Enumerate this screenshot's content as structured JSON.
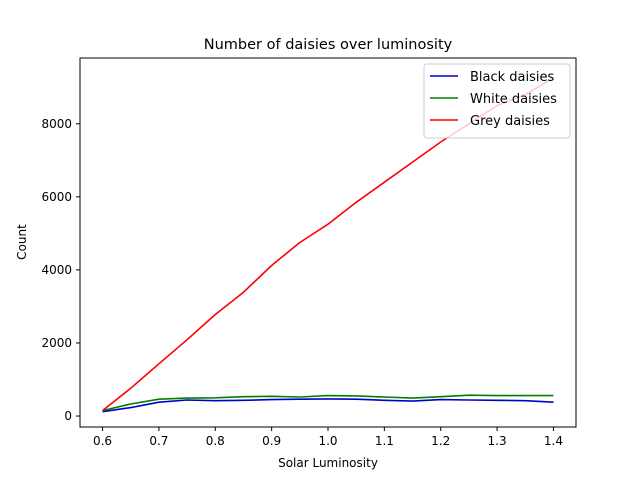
{
  "chart_data": {
    "type": "line",
    "title": "Number of daisies over luminosity",
    "xlabel": "Solar Luminosity",
    "ylabel": "Count",
    "xlim": [
      0.56,
      1.44
    ],
    "ylim": [
      -300,
      9800
    ],
    "xticks": [
      0.6,
      0.7,
      0.8,
      0.9,
      1.0,
      1.1,
      1.2,
      1.3,
      1.4
    ],
    "xtick_labels": [
      "0.6",
      "0.7",
      "0.8",
      "0.9",
      "1.0",
      "1.1",
      "1.2",
      "1.3",
      "1.4"
    ],
    "yticks": [
      0,
      2000,
      4000,
      6000,
      8000
    ],
    "ytick_labels": [
      "0",
      "2000",
      "4000",
      "6000",
      "8000"
    ],
    "grid": false,
    "legend": "top-right",
    "x": [
      0.6,
      0.65,
      0.7,
      0.75,
      0.8,
      0.85,
      0.9,
      0.95,
      1.0,
      1.05,
      1.1,
      1.15,
      1.2,
      1.25,
      1.3,
      1.35,
      1.4
    ],
    "series": [
      {
        "name": "Black daisies",
        "color": "#0000cc",
        "values": [
          120,
          230,
          380,
          440,
          420,
          430,
          450,
          460,
          470,
          460,
          430,
          410,
          450,
          440,
          430,
          420,
          380
        ]
      },
      {
        "name": "White daisies",
        "color": "#008000",
        "values": [
          150,
          330,
          460,
          490,
          500,
          530,
          540,
          520,
          560,
          550,
          520,
          490,
          530,
          570,
          560,
          560,
          560
        ]
      },
      {
        "name": "Grey daisies",
        "color": "#ff0000",
        "values": [
          150,
          760,
          1430,
          2090,
          2780,
          3390,
          4120,
          4750,
          5250,
          5850,
          6400,
          6950,
          7500,
          8000,
          8500,
          8800,
          9250
        ]
      }
    ]
  }
}
